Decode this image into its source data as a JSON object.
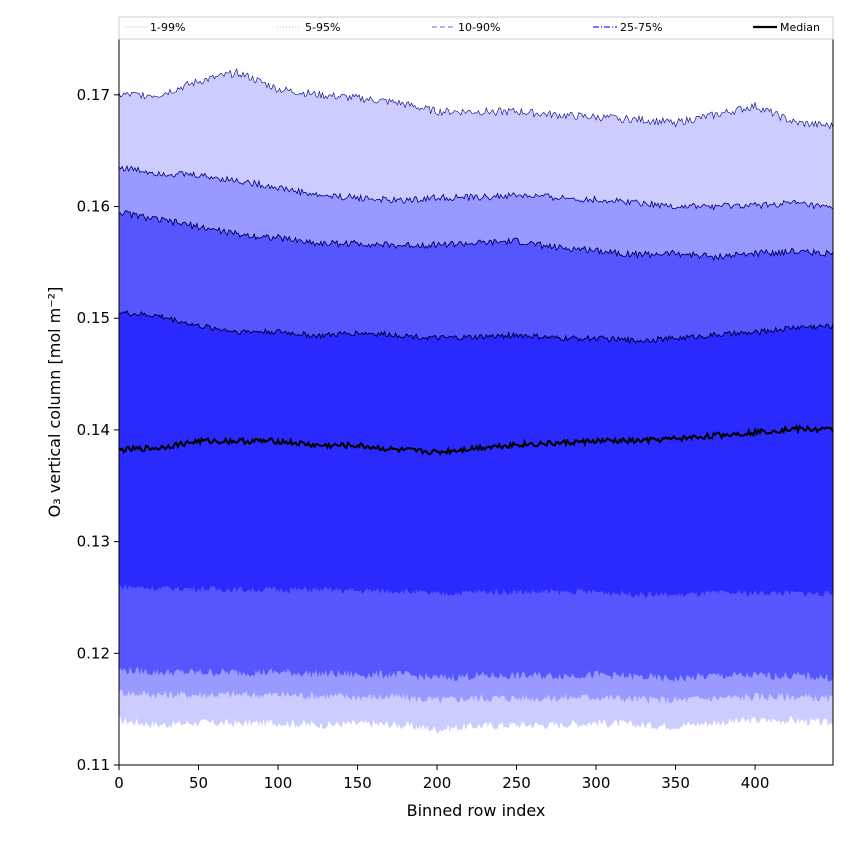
{
  "chart_data": {
    "type": "area",
    "title": "",
    "xlabel": "Binned row index",
    "ylabel": "O₃ vertical column [mol m⁻²]",
    "xlim": [
      0,
      449
    ],
    "ylim": [
      0.11,
      0.175
    ],
    "x_ticks": [
      0,
      50,
      100,
      150,
      200,
      250,
      300,
      350,
      400
    ],
    "y_ticks": [
      0.11,
      0.12,
      0.13,
      0.14,
      0.15,
      0.16,
      0.17
    ],
    "y_tick_labels": [
      "0.11",
      "0.12",
      "0.13",
      "0.14",
      "0.15",
      "0.16",
      "0.17"
    ],
    "grid": false,
    "legend": {
      "placement": "top",
      "entries": [
        {
          "label": "1-99%",
          "color": "#e6e6ff",
          "style": "solid-thin"
        },
        {
          "label": "5-95%",
          "color": "#b3b3ff",
          "style": "dotted"
        },
        {
          "label": "10-90%",
          "color": "#8080ff",
          "style": "dashed"
        },
        {
          "label": "25-75%",
          "color": "#4d4dff",
          "style": "dashdot"
        },
        {
          "label": "Median",
          "color": "#000000",
          "style": "solid-thick"
        }
      ]
    },
    "band_colors": {
      "p1_99": "#ccccff",
      "p5_95": "#9999ff",
      "p10_90": "#5656ff",
      "p25_75": "#2a2aff"
    },
    "x": [
      0,
      25,
      50,
      75,
      100,
      125,
      150,
      175,
      200,
      225,
      250,
      275,
      300,
      325,
      350,
      375,
      400,
      425,
      449
    ],
    "series": [
      {
        "name": "p1",
        "values": [
          0.114,
          0.1136,
          0.1138,
          0.1137,
          0.1138,
          0.1136,
          0.1137,
          0.1136,
          0.1132,
          0.1135,
          0.1136,
          0.1136,
          0.1138,
          0.1136,
          0.1135,
          0.1138,
          0.114,
          0.114,
          0.1137
        ]
      },
      {
        "name": "p5",
        "values": [
          0.1165,
          0.1163,
          0.1163,
          0.1163,
          0.1163,
          0.1162,
          0.1161,
          0.1161,
          0.1158,
          0.116,
          0.116,
          0.116,
          0.1161,
          0.1159,
          0.1158,
          0.116,
          0.1161,
          0.1161,
          0.1159
        ]
      },
      {
        "name": "p10",
        "values": [
          0.1185,
          0.1183,
          0.1183,
          0.1183,
          0.1183,
          0.1182,
          0.1181,
          0.1181,
          0.1178,
          0.118,
          0.118,
          0.118,
          0.1181,
          0.1179,
          0.1177,
          0.118,
          0.118,
          0.118,
          0.1178
        ]
      },
      {
        "name": "p25",
        "values": [
          0.126,
          0.1258,
          0.1258,
          0.1257,
          0.1257,
          0.1257,
          0.1256,
          0.1256,
          0.1253,
          0.1255,
          0.1255,
          0.1255,
          0.1255,
          0.1253,
          0.1252,
          0.1254,
          0.1254,
          0.1254,
          0.1253
        ]
      },
      {
        "name": "Median",
        "values": [
          0.1382,
          0.1384,
          0.139,
          0.139,
          0.139,
          0.1386,
          0.1386,
          0.1382,
          0.138,
          0.1384,
          0.1387,
          0.1388,
          0.139,
          0.139,
          0.1392,
          0.1395,
          0.1398,
          0.1401,
          0.14
        ]
      },
      {
        "name": "p75",
        "values": [
          0.1505,
          0.1502,
          0.1493,
          0.1488,
          0.1488,
          0.1484,
          0.1487,
          0.1485,
          0.1482,
          0.1483,
          0.1485,
          0.1482,
          0.1482,
          0.148,
          0.1482,
          0.1485,
          0.1487,
          0.1492,
          0.1493
        ]
      },
      {
        "name": "p90",
        "values": [
          0.1595,
          0.1588,
          0.1582,
          0.1575,
          0.1572,
          0.1567,
          0.1567,
          0.1565,
          0.1566,
          0.1567,
          0.1569,
          0.1563,
          0.1561,
          0.1557,
          0.1558,
          0.1555,
          0.1558,
          0.156,
          0.1558
        ]
      },
      {
        "name": "p95",
        "values": [
          0.1635,
          0.163,
          0.1628,
          0.1623,
          0.1617,
          0.161,
          0.1608,
          0.1605,
          0.1608,
          0.1608,
          0.161,
          0.1608,
          0.1606,
          0.1604,
          0.16,
          0.16,
          0.1601,
          0.1603,
          0.1598
        ]
      },
      {
        "name": "p99",
        "values": [
          0.17,
          0.17,
          0.1712,
          0.172,
          0.1705,
          0.17,
          0.1697,
          0.1693,
          0.1685,
          0.1685,
          0.1685,
          0.1682,
          0.168,
          0.1678,
          0.1675,
          0.1682,
          0.169,
          0.1675,
          0.1672
        ]
      }
    ]
  }
}
